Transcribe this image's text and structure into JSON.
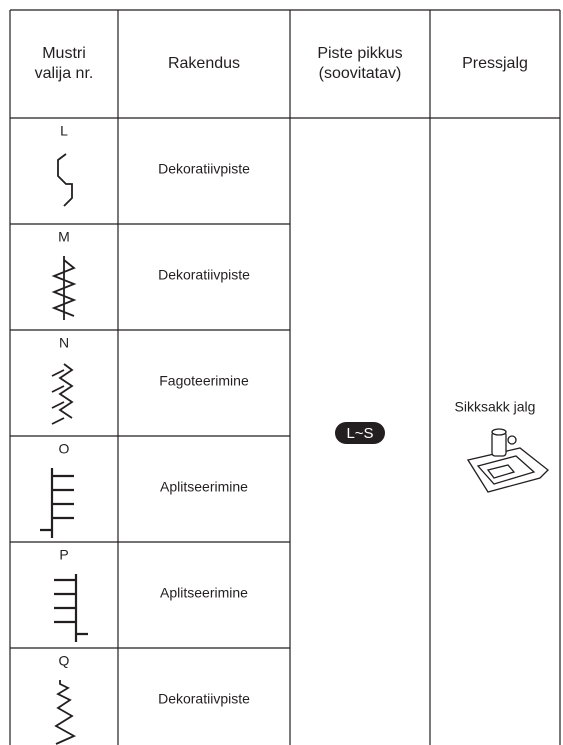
{
  "table": {
    "header": [
      [
        "Mustri",
        "valija nr."
      ],
      [
        "Rakendus"
      ],
      [
        "Piste pikkus",
        "(soovitatav)"
      ],
      [
        "Pressjalg"
      ]
    ],
    "rows": [
      {
        "pattern": "L",
        "application": "Dekoratiivpiste"
      },
      {
        "pattern": "M",
        "application": "Dekoratiivpiste"
      },
      {
        "pattern": "N",
        "application": "Fagoteerimine"
      },
      {
        "pattern": "O",
        "application": "Aplitseerimine"
      },
      {
        "pattern": "P",
        "application": "Aplitseerimine"
      },
      {
        "pattern": "Q",
        "application": "Dekoratiivpiste"
      }
    ],
    "stitch_length": "L~S",
    "presser_foot": "Sikksakk jalg"
  }
}
